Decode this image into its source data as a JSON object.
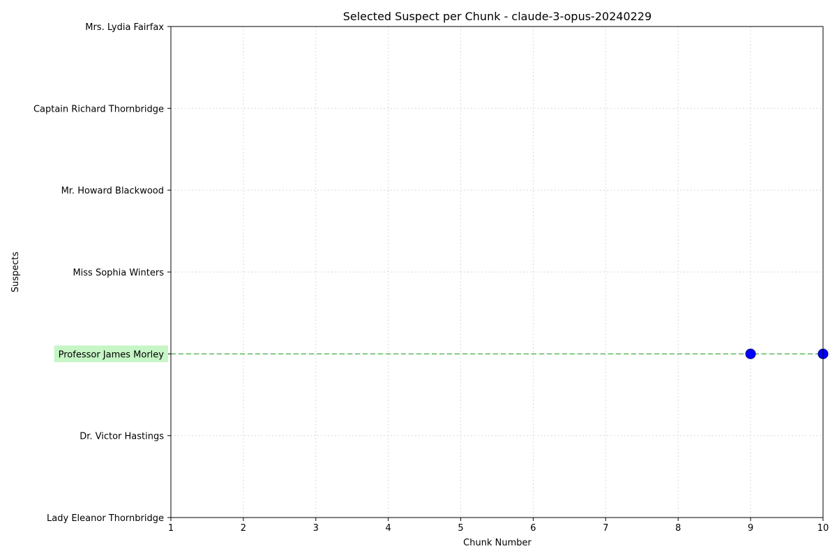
{
  "chart_data": {
    "type": "scatter",
    "title": "Selected Suspect per Chunk - claude-3-opus-20240229",
    "xlabel": "Chunk Number",
    "ylabel": "Suspects",
    "xlim": [
      1,
      10
    ],
    "x_ticks": [
      1,
      2,
      3,
      4,
      5,
      6,
      7,
      8,
      9,
      10
    ],
    "y_categories": [
      "Lady Eleanor Thornbridge",
      "Dr. Victor Hastings",
      "Professor James Morley",
      "Miss Sophia Winters",
      "Mr. Howard Blackwood",
      "Captain Richard Thornbridge",
      "Mrs. Lydia Fairfax"
    ],
    "points": [
      {
        "x": 9,
        "y": "Professor James Morley"
      },
      {
        "x": 10,
        "y": "Professor James Morley"
      }
    ],
    "highlighted_suspect": "Professor James Morley",
    "reference_line": {
      "y": "Professor James Morley",
      "style": "dashed",
      "color": "#5cb85c"
    },
    "grid": true,
    "colors": {
      "point": "#0000ff",
      "point_edge": "#00008b",
      "highlight_bg": "#c6f5c6",
      "grid": "#d9d9d9"
    }
  }
}
